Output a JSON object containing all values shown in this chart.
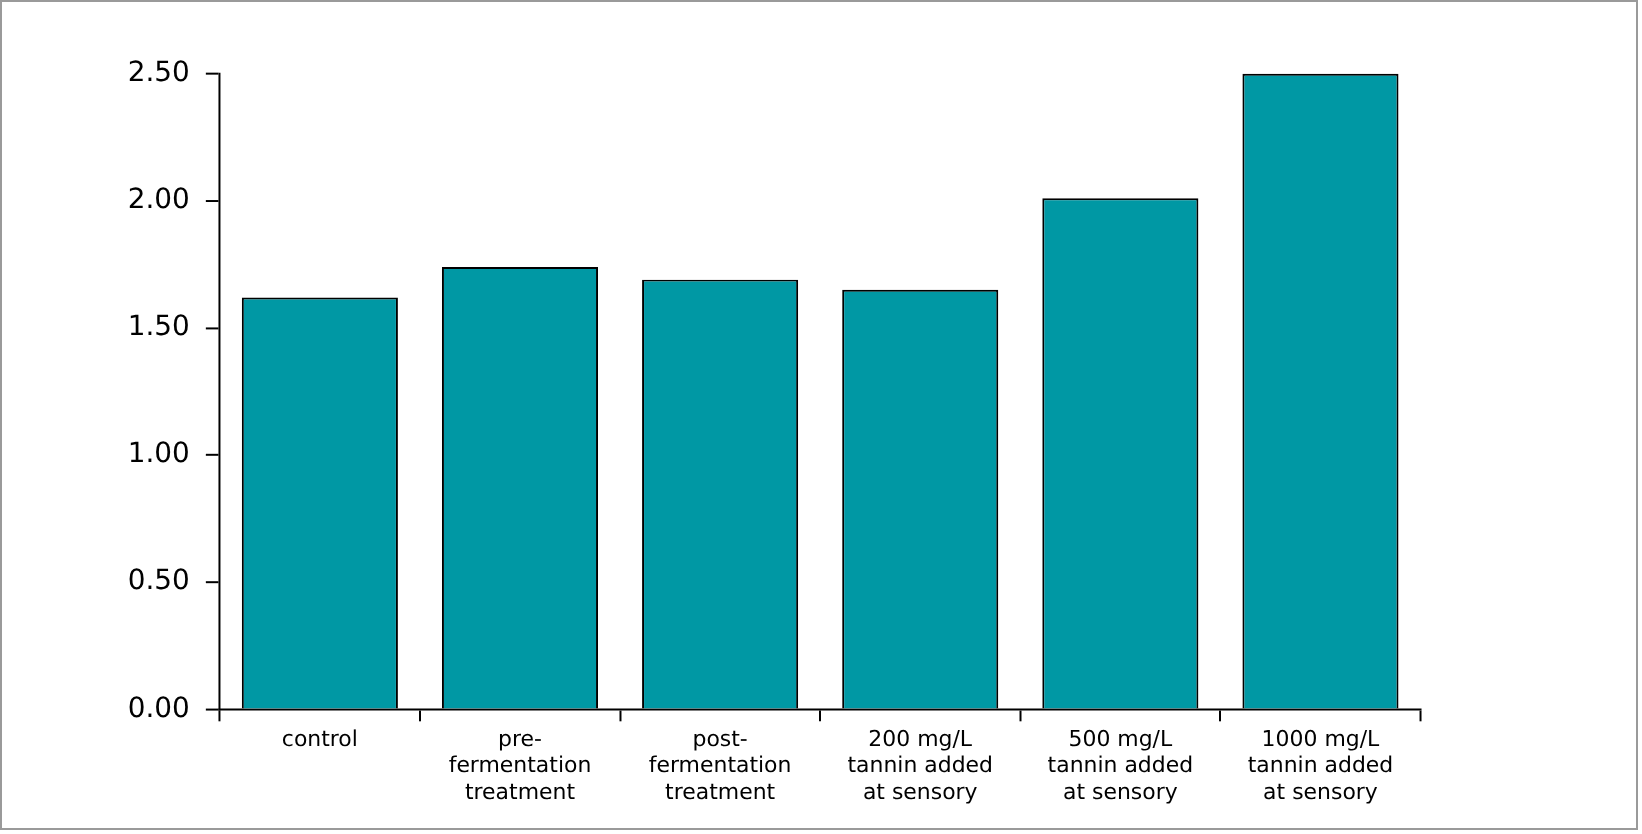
{
  "chart_data": {
    "type": "bar",
    "categories": [
      "control",
      "pre-fermentation treatment",
      "post-fermentation treatment",
      "200 mg/L tannin added at sensory",
      "500 mg/L tannin added at sensory",
      "1000 mg/L tannin added at sensory"
    ],
    "values": [
      1.62,
      1.74,
      1.69,
      1.65,
      2.01,
      2.5
    ],
    "color": "#0098a4",
    "ylim": [
      0,
      2.5
    ],
    "yticks": [
      {
        "value": 0,
        "label": "0.00"
      },
      {
        "value": 0.5,
        "label": "0.50"
      },
      {
        "value": 1,
        "label": "1.00"
      },
      {
        "value": 1.5,
        "label": "1.50"
      },
      {
        "value": 2,
        "label": "2.00"
      },
      {
        "value": 2.5,
        "label": "2.50"
      }
    ],
    "grid": false,
    "legend": false
  }
}
